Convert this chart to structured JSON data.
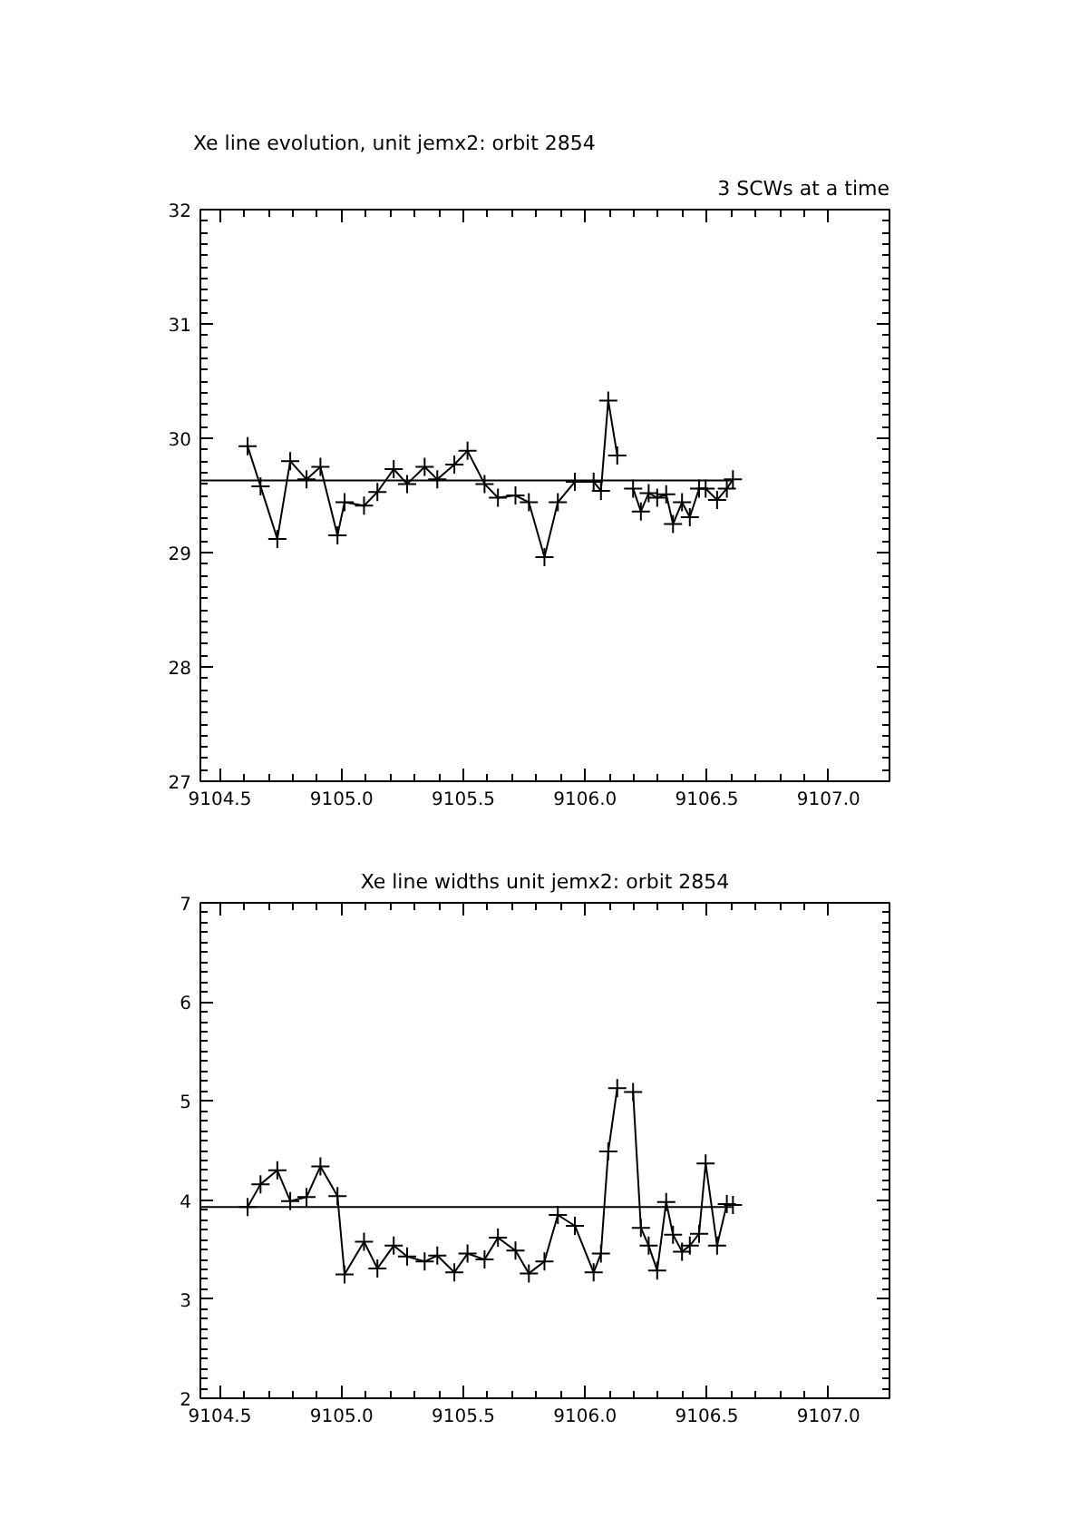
{
  "chart_data": [
    {
      "type": "line",
      "title": "Xe line evolution, unit jemx2: orbit 2854",
      "annotations": [
        "3 SCWs at a time"
      ],
      "marker": "cross",
      "grid": false,
      "x": [
        9104.614,
        9104.667,
        9104.736,
        9104.789,
        9104.856,
        9104.913,
        9104.983,
        9105.012,
        9105.092,
        9105.147,
        9105.214,
        9105.269,
        9105.341,
        9105.393,
        9105.463,
        9105.517,
        9105.587,
        9105.642,
        9105.714,
        9105.769,
        9105.833,
        9105.888,
        9105.958,
        9106.035,
        9106.065,
        9106.095,
        9106.132,
        9106.162,
        9106.197,
        9106.229,
        9106.261,
        9106.296,
        9106.333,
        9106.361,
        9106.398,
        9106.43,
        9106.468,
        9106.495,
        9106.542,
        9106.582,
        9106.607
      ],
      "series": [
        {
          "color": "#000000",
          "values": [
            29.93,
            29.58,
            29.12,
            29.8,
            29.64,
            29.75,
            29.15,
            29.44,
            29.41,
            29.53,
            29.73,
            29.6,
            29.75,
            29.64,
            29.77,
            29.89,
            29.6,
            29.48,
            29.5,
            29.44,
            28.96,
            29.44,
            29.62,
            29.62,
            29.54,
            30.33,
            29.85,
            null,
            29.56,
            29.36,
            29.52,
            29.48,
            29.51,
            29.25,
            29.44,
            29.31,
            29.56,
            29.56,
            29.46,
            29.56,
            29.64
          ]
        }
      ],
      "ref_lines": [
        {
          "axis": "y",
          "value": 29.63,
          "color": "#000000"
        }
      ],
      "xlim": [
        9104.42,
        9107.25
      ],
      "ylim": [
        27,
        32
      ],
      "xticks": [
        9104.5,
        {
          "value": 9105,
          "label": "9105.0"
        },
        9105.5,
        {
          "value": 9106,
          "label": "9106.0"
        },
        9106.5,
        {
          "value": 9107,
          "label": "9107.0"
        }
      ],
      "yticks": [
        27,
        28,
        29,
        30,
        31,
        32
      ]
    },
    {
      "type": "line",
      "title": "Xe line widths unit jemx2: orbit 2854",
      "marker": "cross",
      "grid": false,
      "x": [
        9104.614,
        9104.667,
        9104.736,
        9104.789,
        9104.856,
        9104.913,
        9104.983,
        9105.012,
        9105.092,
        9105.147,
        9105.214,
        9105.269,
        9105.341,
        9105.393,
        9105.463,
        9105.517,
        9105.587,
        9105.642,
        9105.714,
        9105.769,
        9105.833,
        9105.888,
        9105.958,
        9106.035,
        9106.065,
        9106.095,
        9106.132,
        9106.162,
        9106.197,
        9106.229,
        9106.261,
        9106.296,
        9106.333,
        9106.361,
        9106.398,
        9106.43,
        9106.468,
        9106.495,
        9106.542,
        9106.582,
        9106.607
      ],
      "series": [
        {
          "color": "#000000",
          "values": [
            3.93,
            4.16,
            4.3,
            3.99,
            4.03,
            4.34,
            4.04,
            3.25,
            3.58,
            3.31,
            3.54,
            3.43,
            3.38,
            3.44,
            3.27,
            3.46,
            3.4,
            3.62,
            3.49,
            3.26,
            3.38,
            3.85,
            3.74,
            3.27,
            3.46,
            4.49,
            5.13,
            null,
            5.09,
            3.72,
            3.54,
            3.29,
            3.98,
            3.65,
            3.48,
            3.54,
            3.66,
            4.37,
            3.54,
            3.96,
            3.95
          ]
        }
      ],
      "ref_lines": [
        {
          "axis": "y",
          "value": 3.93,
          "color": "#000000"
        }
      ],
      "xlim": [
        9104.42,
        9107.25
      ],
      "ylim": [
        2,
        7
      ],
      "xticks": [
        9104.5,
        {
          "value": 9105,
          "label": "9105.0"
        },
        9105.5,
        {
          "value": 9106,
          "label": "9106.0"
        },
        9106.5,
        {
          "value": 9107,
          "label": "9107.0"
        }
      ],
      "yticks": [
        2,
        3,
        4,
        5,
        6,
        7
      ]
    }
  ]
}
